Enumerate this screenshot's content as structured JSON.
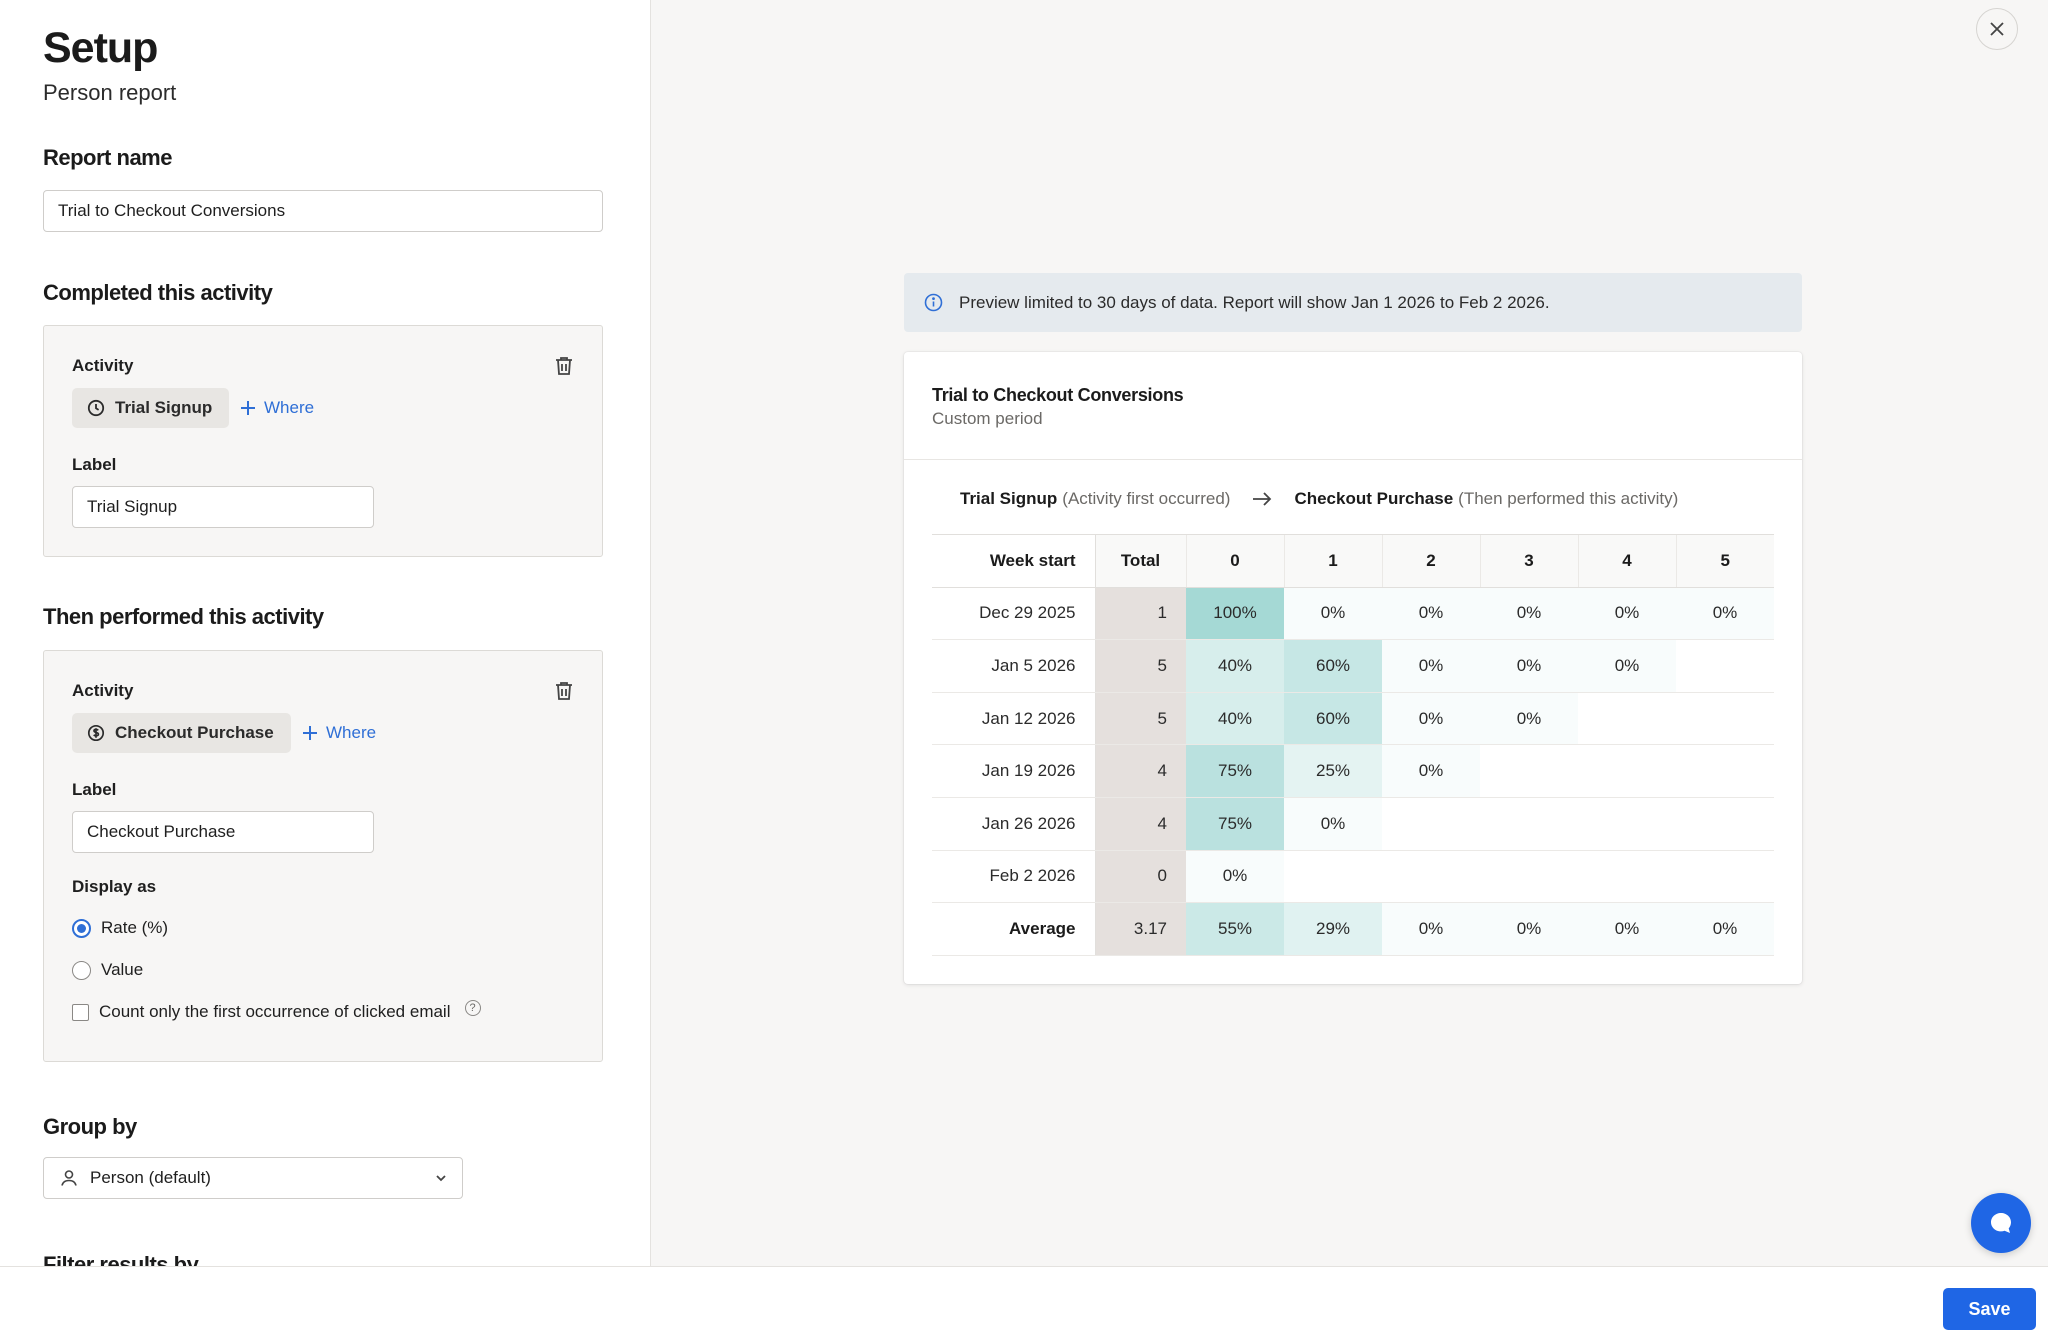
{
  "setup": {
    "title": "Setup",
    "subtitle": "Person report"
  },
  "report_name": {
    "section_title": "Report name",
    "value": "Trial to Checkout Conversions"
  },
  "completed_activity": {
    "section_title": "Completed this activity",
    "activity_label": "Activity",
    "chip_label": "Trial Signup",
    "chip_icon": "clock-icon",
    "where_label": "Where",
    "label_title": "Label",
    "label_value": "Trial Signup"
  },
  "then_activity": {
    "section_title": "Then performed this activity",
    "activity_label": "Activity",
    "chip_label": "Checkout Purchase",
    "chip_icon": "dollar-circle-icon",
    "where_label": "Where",
    "label_title": "Label",
    "label_value": "Checkout Purchase",
    "display_as_title": "Display as",
    "display_options": [
      {
        "label": "Rate (%)",
        "selected": true
      },
      {
        "label": "Value",
        "selected": false
      }
    ],
    "checkbox_label": "Count only the first occurrence of clicked email",
    "checkbox_checked": false,
    "help_glyph": "?"
  },
  "group_by": {
    "section_title": "Group by",
    "value": "Person (default)"
  },
  "filter_results": {
    "section_title": "Filter results by"
  },
  "banner": {
    "text": "Preview limited to 30 days of data. Report will show Jan 1 2026 to Feb 2 2026."
  },
  "report": {
    "title": "Trial to Checkout Conversions",
    "subtitle": "Custom period",
    "flow_from": "Trial Signup",
    "flow_from_note": "(Activity first occurred)",
    "flow_to": "Checkout Purchase",
    "flow_to_note": "(Then performed this activity)"
  },
  "chart_data": {
    "type": "table",
    "columns": [
      "Week start",
      "Total",
      "0",
      "1",
      "2",
      "3",
      "4",
      "5"
    ],
    "rows": [
      {
        "week": "Dec 29 2025",
        "total": "1",
        "cells": [
          "100%",
          "0%",
          "0%",
          "0%",
          "0%",
          "0%"
        ]
      },
      {
        "week": "Jan 5 2026",
        "total": "5",
        "cells": [
          "40%",
          "60%",
          "0%",
          "0%",
          "0%",
          ""
        ]
      },
      {
        "week": "Jan 12 2026",
        "total": "5",
        "cells": [
          "40%",
          "60%",
          "0%",
          "0%",
          "",
          ""
        ]
      },
      {
        "week": "Jan 19 2026",
        "total": "4",
        "cells": [
          "75%",
          "25%",
          "0%",
          "",
          "",
          ""
        ]
      },
      {
        "week": "Jan 26 2026",
        "total": "4",
        "cells": [
          "75%",
          "0%",
          "",
          "",
          "",
          ""
        ]
      },
      {
        "week": "Feb 2 2026",
        "total": "0",
        "cells": [
          "0%",
          "",
          "",
          "",
          "",
          ""
        ]
      }
    ],
    "average": {
      "week": "Average",
      "total": "3.17",
      "cells": [
        "55%",
        "29%",
        "0%",
        "0%",
        "0%",
        "0%"
      ]
    },
    "heat_color": "#8fcfcb"
  },
  "footer": {
    "save_label": "Save"
  },
  "colors": {
    "accent": "#1f66e5",
    "link": "#2f6fd6"
  }
}
